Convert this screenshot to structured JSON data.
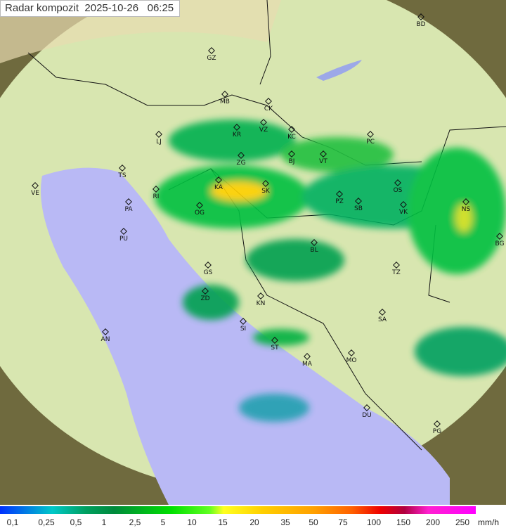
{
  "title": "Radar kompozit  2025-10-26   06:25",
  "cities": [
    "BD",
    "GZ",
    "MB",
    "CK",
    "VZ",
    "KR",
    "KC",
    "LJ",
    "PC",
    "BJ",
    "VT",
    "TS",
    "ZG",
    "VE",
    "KA",
    "SK",
    "RI",
    "OS",
    "PZ",
    "SB",
    "VK",
    "PA",
    "OG",
    "NS",
    "PU",
    "BG",
    "BL",
    "GS",
    "TZ",
    "ZD",
    "KN",
    "SA",
    "SI",
    "AN",
    "ST",
    "MA",
    "MO",
    "DU",
    "PG"
  ],
  "legend": {
    "ticks": [
      "0,1",
      "0,25",
      "0,5",
      "1",
      "2,5",
      "5",
      "10",
      "15",
      "20",
      "35",
      "50",
      "75",
      "100",
      "150",
      "200",
      "250"
    ],
    "unit": "mm/h"
  },
  "colors": {
    "land": "#cfe3a8",
    "sea": "#b9b9f5",
    "outside": "#6f6a3e",
    "rain_light": "#00a0c0",
    "rain_mid": "#00c000",
    "rain_heavy": "#ffd000"
  }
}
